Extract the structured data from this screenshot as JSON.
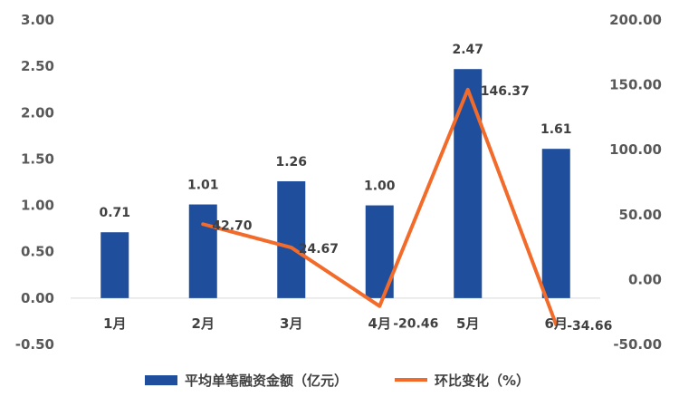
{
  "chart_data": {
    "type": "bar",
    "categories": [
      "1月",
      "2月",
      "3月",
      "4月",
      "5月",
      "6月"
    ],
    "series": [
      {
        "name": "平均单笔融资金额（亿元）",
        "type": "bar",
        "axis": "left",
        "values": [
          0.71,
          1.01,
          1.26,
          1.0,
          2.47,
          1.61
        ],
        "labels": [
          "0.71",
          "1.01",
          "1.26",
          "1.00",
          "2.47",
          "1.61"
        ],
        "color": "#1F4E9C"
      },
      {
        "name": "环比变化（%）",
        "type": "line",
        "axis": "right",
        "values": [
          null,
          42.7,
          24.67,
          -20.46,
          146.37,
          -34.66
        ],
        "labels": [
          "",
          "42.70",
          "24.67",
          "-20.46",
          "146.37",
          "-34.66"
        ],
        "color": "#F26B2A"
      }
    ],
    "y_left": {
      "ylim": [
        -0.5,
        3.0
      ],
      "ticks": [
        "3.00",
        "2.50",
        "2.00",
        "1.50",
        "1.00",
        "0.50",
        "0.00",
        "-0.50"
      ],
      "tick_values": [
        3.0,
        2.5,
        2.0,
        1.5,
        1.0,
        0.5,
        0.0,
        -0.5
      ]
    },
    "y_right": {
      "ylim": [
        -50,
        200
      ],
      "ticks": [
        "200.00",
        "150.00",
        "100.00",
        "50.00",
        "0.00",
        "-50.00"
      ],
      "tick_values": [
        200,
        150,
        100,
        50,
        0,
        -50
      ]
    },
    "grid": false,
    "legend": "bottom"
  }
}
